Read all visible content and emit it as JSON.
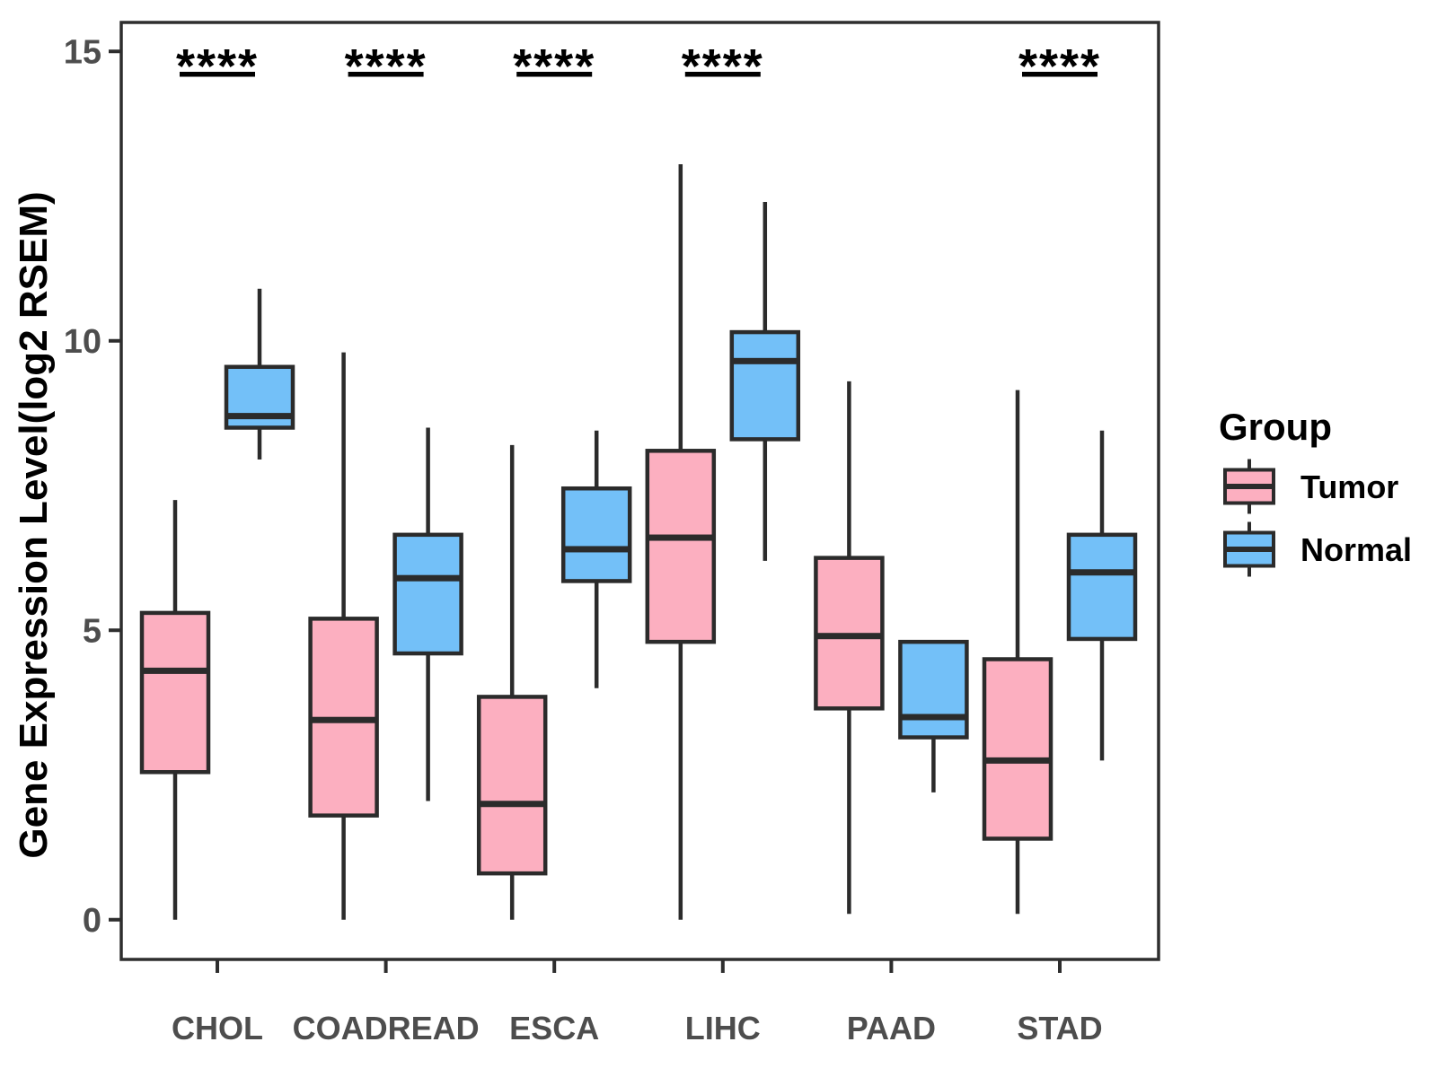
{
  "figure": {
    "background": "#FFFFFF"
  },
  "y_axis": {
    "title": "Gene Expression Level(log2 RSEM)",
    "tick_labels": [
      "0",
      "5",
      "10",
      "15"
    ],
    "tick_values": [
      0,
      5,
      10,
      15
    ],
    "label_color": "#4D4D4D"
  },
  "x_axis": {
    "tick_labels": [
      "CHOL",
      "COADREAD",
      "ESCA",
      "LIHC",
      "PAAD",
      "STAD"
    ],
    "label_color": "#4D4D4D"
  },
  "legend": {
    "title": "Group",
    "items": [
      {
        "label": "Tumor",
        "color": "#FCAFC0"
      },
      {
        "label": "Normal",
        "color": "#73C0F8"
      }
    ]
  },
  "significance": {
    "symbol": "****",
    "bar_categories": [
      "CHOL",
      "COADREAD",
      "ESCA",
      "LIHC",
      "STAD"
    ]
  },
  "colors": {
    "tumor_fill": "#FCAFC0",
    "normal_fill": "#73C0F8",
    "box_stroke": "#2B2B2B",
    "frame_stroke": "#2E2E2E",
    "tick_text": "#4D4D4D",
    "black": "#000000"
  },
  "chart_data": {
    "type": "box",
    "title": "",
    "xlabel": "",
    "ylabel": "Gene Expression Level(log2 RSEM)",
    "ylim": [
      -0.7,
      15.5
    ],
    "yticks": [
      0,
      5,
      10,
      15
    ],
    "grid": false,
    "legend_position": "right",
    "categories": [
      "CHOL",
      "COADREAD",
      "ESCA",
      "LIHC",
      "PAAD",
      "STAD"
    ],
    "series": [
      {
        "name": "Tumor",
        "fill": "#FCAFC0",
        "boxes": [
          {
            "category": "CHOL",
            "whisker_low": 0,
            "q1": 2.55,
            "median": 4.3,
            "q3": 5.3,
            "whisker_high": 7.25
          },
          {
            "category": "COADREAD",
            "whisker_low": 0,
            "q1": 1.8,
            "median": 3.45,
            "q3": 5.2,
            "whisker_high": 9.8
          },
          {
            "category": "ESCA",
            "whisker_low": 0,
            "q1": 0.8,
            "median": 2.0,
            "q3": 3.85,
            "whisker_high": 8.2
          },
          {
            "category": "LIHC",
            "whisker_low": 0,
            "q1": 4.8,
            "median": 6.6,
            "q3": 8.1,
            "whisker_high": 13.05
          },
          {
            "category": "PAAD",
            "whisker_low": 0.1,
            "q1": 3.65,
            "median": 4.9,
            "q3": 6.25,
            "whisker_high": 9.3
          },
          {
            "category": "STAD",
            "whisker_low": 0.1,
            "q1": 1.4,
            "median": 2.75,
            "q3": 4.5,
            "whisker_high": 9.15
          }
        ]
      },
      {
        "name": "Normal",
        "fill": "#73C0F8",
        "boxes": [
          {
            "category": "CHOL",
            "whisker_low": 7.95,
            "q1": 8.5,
            "median": 8.7,
            "q3": 9.55,
            "whisker_high": 10.9
          },
          {
            "category": "COADREAD",
            "whisker_low": 2.05,
            "q1": 4.6,
            "median": 5.9,
            "q3": 6.65,
            "whisker_high": 8.5
          },
          {
            "category": "ESCA",
            "whisker_low": 4.0,
            "q1": 5.85,
            "median": 6.4,
            "q3": 7.45,
            "whisker_high": 8.45
          },
          {
            "category": "LIHC",
            "whisker_low": 6.2,
            "q1": 8.3,
            "median": 9.65,
            "q3": 10.15,
            "whisker_high": 12.4
          },
          {
            "category": "PAAD",
            "whisker_low": 2.2,
            "q1": 3.15,
            "median": 3.5,
            "q3": 4.8,
            "whisker_high": 4.8
          },
          {
            "category": "STAD",
            "whisker_low": 2.75,
            "q1": 4.85,
            "median": 6.0,
            "q3": 6.65,
            "whisker_high": 8.45
          }
        ]
      }
    ]
  }
}
